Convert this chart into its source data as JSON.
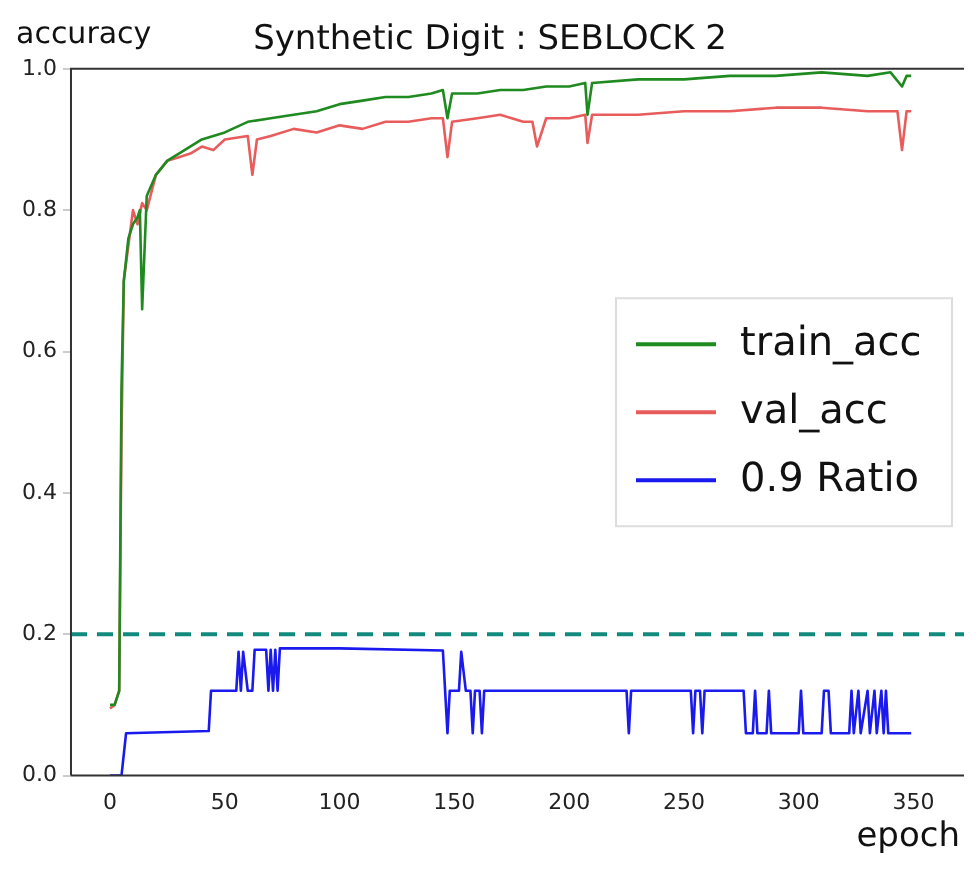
{
  "chart_data": {
    "type": "line",
    "title": "Synthetic Digit : SEBLOCK 2",
    "xlabel": "epoch",
    "ylabel": "accuracy",
    "xlim": [
      -17,
      372
    ],
    "ylim": [
      0,
      1
    ],
    "xticks": [
      0,
      50,
      100,
      150,
      200,
      250,
      300,
      350
    ],
    "yticks": [
      {
        "value": 0,
        "label": "0.0"
      },
      {
        "value": 0.2,
        "label": "0.2"
      },
      {
        "value": 0.4,
        "label": "0.4"
      },
      {
        "value": 0.6,
        "label": "0.6"
      },
      {
        "value": 0.8,
        "label": "0.8"
      },
      {
        "value": 1,
        "label": "1.0"
      }
    ],
    "grid": false,
    "legend": "right",
    "marker": "none",
    "line_style": "solid",
    "ref_lines": [
      {
        "axis": "y",
        "value": 0.2,
        "color": "#138a7e",
        "line_style": "dashed"
      }
    ],
    "series": [
      {
        "name": "train_acc",
        "color": "#1f8a1f",
        "x": [
          0,
          2,
          4,
          5,
          6,
          8,
          10,
          12,
          13,
          14,
          16,
          20,
          25,
          30,
          40,
          50,
          60,
          70,
          80,
          90,
          100,
          110,
          120,
          130,
          140,
          145,
          147,
          149,
          160,
          170,
          180,
          190,
          200,
          207,
          208,
          210,
          230,
          250,
          270,
          290,
          310,
          330,
          340,
          345,
          347,
          349
        ],
        "values": [
          0.1,
          0.1,
          0.12,
          0.55,
          0.7,
          0.76,
          0.78,
          0.79,
          0.8,
          0.66,
          0.82,
          0.85,
          0.87,
          0.88,
          0.9,
          0.91,
          0.925,
          0.93,
          0.935,
          0.94,
          0.95,
          0.955,
          0.96,
          0.96,
          0.965,
          0.97,
          0.93,
          0.965,
          0.965,
          0.97,
          0.97,
          0.975,
          0.975,
          0.98,
          0.935,
          0.98,
          0.985,
          0.985,
          0.99,
          0.99,
          0.995,
          0.99,
          0.995,
          0.975,
          0.99,
          0.99
        ]
      },
      {
        "name": "val_acc",
        "color": "#e85c5c",
        "x": [
          0,
          2,
          4,
          5,
          6,
          8,
          10,
          12,
          14,
          16,
          20,
          25,
          30,
          35,
          40,
          45,
          50,
          60,
          62,
          64,
          70,
          80,
          90,
          100,
          110,
          120,
          130,
          140,
          145,
          147,
          149,
          160,
          170,
          180,
          184,
          186,
          190,
          200,
          207,
          208,
          210,
          230,
          250,
          270,
          290,
          310,
          330,
          343,
          345,
          347,
          349
        ],
        "values": [
          0.095,
          0.1,
          0.12,
          0.48,
          0.7,
          0.75,
          0.8,
          0.78,
          0.81,
          0.8,
          0.85,
          0.87,
          0.875,
          0.88,
          0.89,
          0.885,
          0.9,
          0.905,
          0.85,
          0.9,
          0.905,
          0.915,
          0.91,
          0.92,
          0.915,
          0.925,
          0.925,
          0.93,
          0.93,
          0.875,
          0.925,
          0.93,
          0.935,
          0.925,
          0.925,
          0.89,
          0.93,
          0.93,
          0.935,
          0.895,
          0.935,
          0.935,
          0.94,
          0.94,
          0.945,
          0.945,
          0.94,
          0.94,
          0.885,
          0.94,
          0.94
        ]
      },
      {
        "name": "0.9 Ratio",
        "color": "#1a1aee",
        "x": [
          0,
          5,
          7,
          43,
          44,
          55,
          56,
          57,
          58,
          60,
          62,
          63,
          68,
          69,
          70,
          71,
          72,
          73,
          74,
          100,
          145,
          147,
          148,
          152,
          153,
          155,
          157,
          158,
          159,
          161,
          162,
          163,
          225,
          226,
          227,
          253,
          254,
          255,
          257,
          258,
          259,
          276,
          277,
          280,
          281,
          282,
          286,
          287,
          288,
          300,
          301,
          302,
          310,
          311,
          313,
          314,
          322,
          323,
          324,
          326,
          327,
          330,
          331,
          333,
          334,
          336,
          337,
          338,
          339,
          349
        ],
        "values": [
          0,
          0,
          0.06,
          0.063,
          0.12,
          0.12,
          0.175,
          0.12,
          0.175,
          0.12,
          0.12,
          0.178,
          0.178,
          0.12,
          0.178,
          0.12,
          0.178,
          0.12,
          0.18,
          0.18,
          0.177,
          0.06,
          0.12,
          0.12,
          0.175,
          0.12,
          0.12,
          0.06,
          0.12,
          0.12,
          0.06,
          0.12,
          0.12,
          0.06,
          0.12,
          0.12,
          0.06,
          0.12,
          0.12,
          0.06,
          0.12,
          0.12,
          0.06,
          0.06,
          0.12,
          0.06,
          0.06,
          0.12,
          0.06,
          0.06,
          0.12,
          0.06,
          0.06,
          0.12,
          0.12,
          0.06,
          0.06,
          0.12,
          0.06,
          0.12,
          0.06,
          0.12,
          0.06,
          0.12,
          0.06,
          0.12,
          0.06,
          0.12,
          0.06,
          0.06
        ]
      }
    ]
  }
}
